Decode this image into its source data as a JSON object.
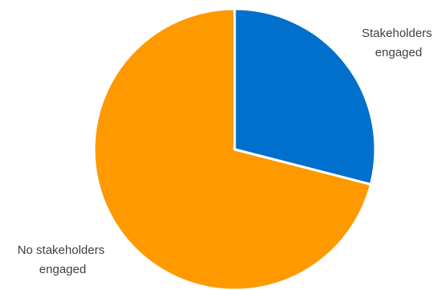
{
  "chart_data": {
    "type": "pie",
    "title": "",
    "slices": [
      {
        "label_lines": [
          "Stakeholders",
          "engaged"
        ],
        "value": 29,
        "color": "#0070cc"
      },
      {
        "label_lines": [
          "No stakeholders",
          "engaged"
        ],
        "value": 71,
        "color": "#ff9900"
      }
    ],
    "start_angle_deg": 0,
    "direction": "clockwise",
    "legend": "none",
    "slice_border_color": "#ffffff"
  }
}
